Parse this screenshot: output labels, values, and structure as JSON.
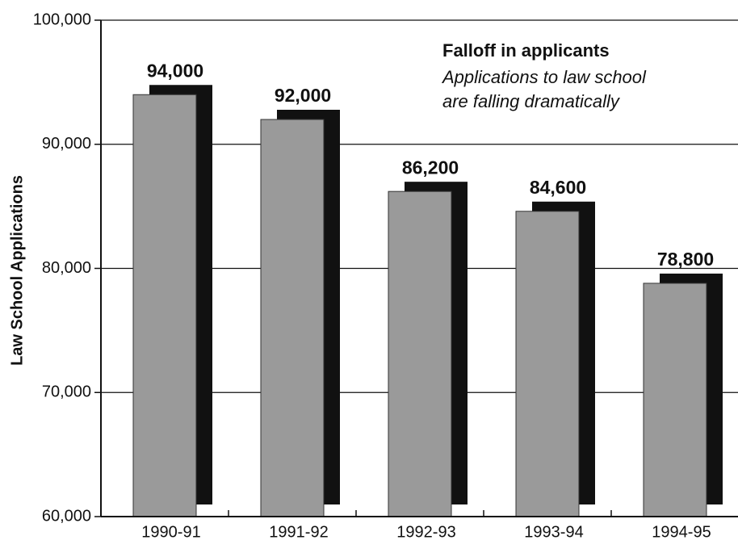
{
  "chart_data": {
    "type": "bar",
    "title": "Falloff in applicants",
    "subtitle": [
      "Applications to law school",
      "are falling dramatically"
    ],
    "y_label": "Law School Applications",
    "categories": [
      "1990-91",
      "1991-92",
      "1992-93",
      "1993-94",
      "1994-95"
    ],
    "values": [
      94000,
      92000,
      86200,
      84600,
      78800
    ],
    "value_labels": [
      "94,000",
      "92,000",
      "86,200",
      "84,600",
      "78,800"
    ],
    "color": "#9a9a9a",
    "shadow_color": "#111111",
    "ylim": [
      60000,
      100000
    ],
    "yticks": [
      {
        "value": 60000,
        "label": "60,000"
      },
      {
        "value": 70000,
        "label": "70,000"
      },
      {
        "value": 80000,
        "label": "80,000"
      },
      {
        "value": 90000,
        "label": "90,000"
      },
      {
        "value": 100000,
        "label": "100,000"
      }
    ],
    "grid": true
  }
}
